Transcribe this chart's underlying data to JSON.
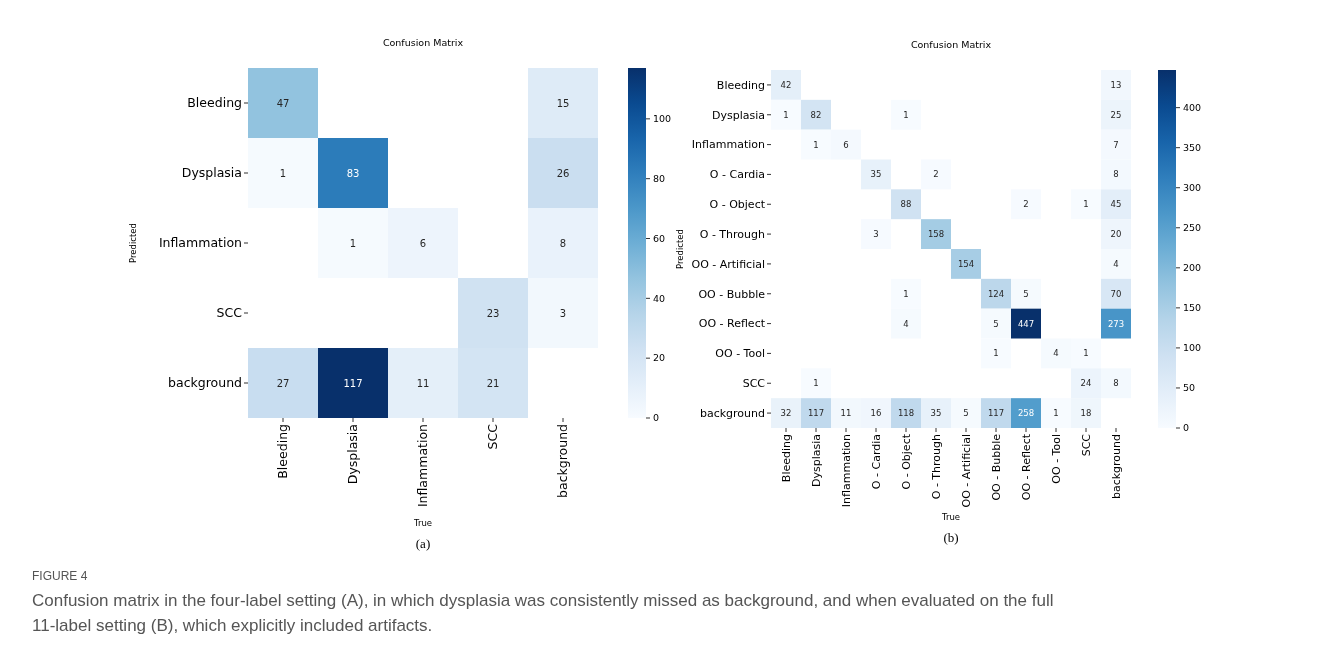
{
  "chart_data": [
    {
      "type": "heatmap",
      "title": "Confusion Matrix",
      "xlabel": "True",
      "ylabel": "Predicted",
      "categories": [
        "Bleeding",
        "Dysplasia",
        "Inflammation",
        "SCC",
        "background"
      ],
      "y_categories": [
        "Bleeding",
        "Dysplasia",
        "Inflammation",
        "SCC",
        "background"
      ],
      "cells": [
        [
          47,
          null,
          null,
          null,
          15
        ],
        [
          1,
          83,
          null,
          null,
          26
        ],
        [
          null,
          1,
          6,
          null,
          8
        ],
        [
          null,
          null,
          null,
          23,
          3
        ],
        [
          27,
          117,
          11,
          21,
          null
        ]
      ],
      "clim": [
        0,
        117
      ],
      "cticks": [
        0,
        20,
        40,
        60,
        80,
        100
      ],
      "data_labels": true,
      "annotations": [
        "(a)"
      ]
    },
    {
      "type": "heatmap",
      "title": "Confusion Matrix",
      "xlabel": "True",
      "ylabel": "Predicted",
      "categories": [
        "Bleeding",
        "Dysplasia",
        "Inflammation",
        "O - Cardia",
        "O - Object",
        "O - Through",
        "OO - Artificial",
        "OO - Bubble",
        "OO - Reflect",
        "OO - Tool",
        "SCC",
        "background"
      ],
      "y_categories": [
        "Bleeding",
        "Dysplasia",
        "Inflammation",
        "O - Cardia",
        "O - Object",
        "O - Through",
        "OO - Artificial",
        "OO - Bubble",
        "OO - Reflect",
        "OO - Tool",
        "SCC",
        "background"
      ],
      "cells": [
        [
          42,
          null,
          null,
          null,
          null,
          null,
          null,
          null,
          null,
          null,
          null,
          13
        ],
        [
          1,
          82,
          null,
          null,
          1,
          null,
          null,
          null,
          null,
          null,
          null,
          25
        ],
        [
          null,
          1,
          6,
          null,
          null,
          null,
          null,
          null,
          null,
          null,
          null,
          7
        ],
        [
          null,
          null,
          null,
          35,
          null,
          2,
          null,
          null,
          null,
          null,
          null,
          8
        ],
        [
          null,
          null,
          null,
          null,
          88,
          null,
          null,
          null,
          2,
          null,
          1,
          45
        ],
        [
          null,
          null,
          null,
          3,
          null,
          158,
          null,
          null,
          null,
          null,
          null,
          20
        ],
        [
          null,
          null,
          null,
          null,
          null,
          null,
          154,
          null,
          null,
          null,
          null,
          4
        ],
        [
          null,
          null,
          null,
          null,
          1,
          null,
          null,
          124,
          5,
          null,
          null,
          70
        ],
        [
          null,
          null,
          null,
          null,
          4,
          null,
          null,
          5,
          447,
          null,
          null,
          273
        ],
        [
          null,
          null,
          null,
          null,
          null,
          null,
          null,
          1,
          null,
          4,
          1,
          null
        ],
        [
          null,
          1,
          null,
          null,
          null,
          null,
          null,
          null,
          null,
          null,
          24,
          8
        ],
        [
          32,
          117,
          11,
          16,
          118,
          35,
          5,
          117,
          258,
          1,
          18,
          null
        ]
      ],
      "clim": [
        0,
        447
      ],
      "cticks": [
        0,
        50,
        100,
        150,
        200,
        250,
        300,
        350,
        400
      ],
      "data_labels": true,
      "annotations": [
        "(b)",
        "FIGURE 4",
        "Confusion matrix in the four-label setting (A), in which dysplasia was consistently missed as background, and when evaluated on the full 11-label setting (B), which explicitly included artifacts."
      ]
    }
  ]
}
